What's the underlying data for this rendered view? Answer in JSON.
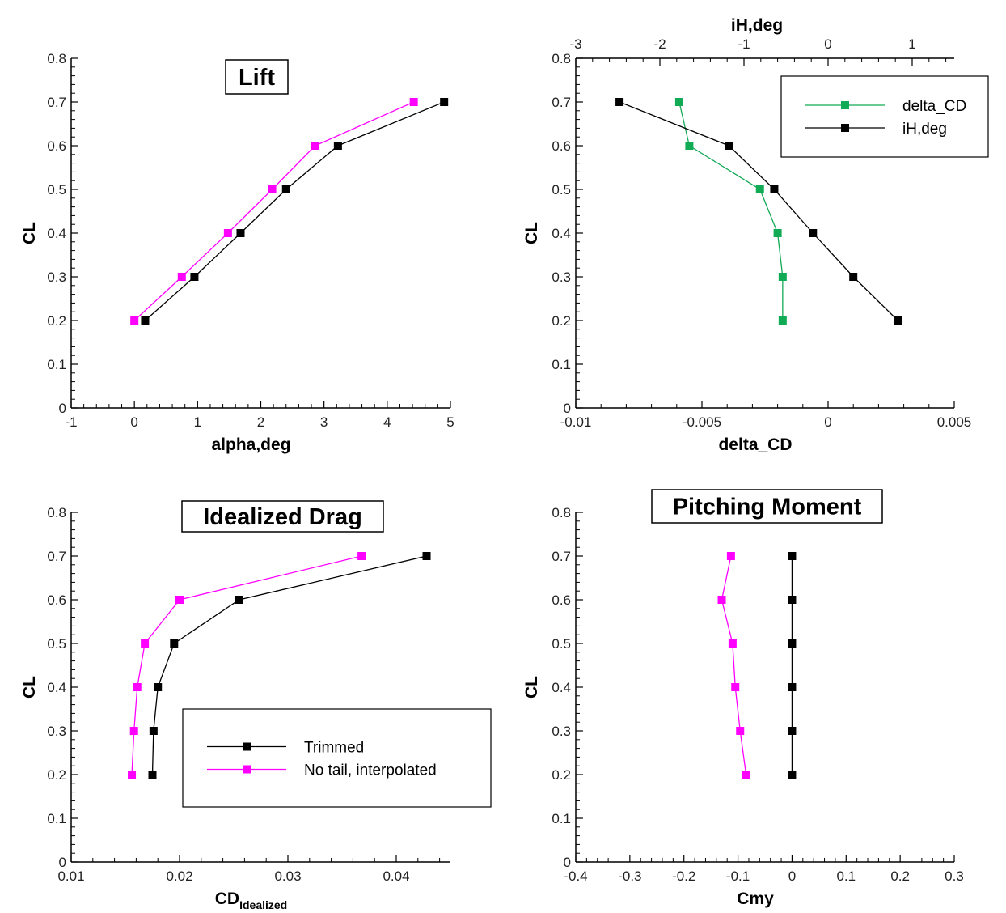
{
  "chart_data": [
    {
      "type": "line",
      "title": "Lift",
      "xlabel": "alpha,deg",
      "ylabel": "CL",
      "xlim": [
        -1,
        5
      ],
      "ylim": [
        0,
        0.8
      ],
      "xticks": [
        "-1",
        "0",
        "1",
        "2",
        "3",
        "4",
        "5"
      ],
      "yticks": [
        "0",
        "0.1",
        "0.2",
        "0.3",
        "0.4",
        "0.5",
        "0.6",
        "0.7",
        "0.8"
      ],
      "grid": false,
      "legend": [],
      "series": [
        {
          "color": "#000000",
          "x": [
            0.17,
            0.95,
            1.68,
            2.4,
            3.22,
            4.9
          ],
          "y": [
            0.2,
            0.3,
            0.4,
            0.5,
            0.6,
            0.7
          ]
        },
        {
          "color": "#ff00ff",
          "x": [
            0.0,
            0.75,
            1.48,
            2.18,
            2.86,
            4.42
          ],
          "y": [
            0.2,
            0.3,
            0.4,
            0.5,
            0.6,
            0.7
          ]
        }
      ]
    },
    {
      "type": "line",
      "title": "",
      "xlabel": "delta_CD",
      "ylabel": "CL",
      "x2label": "iH,deg",
      "xlim": [
        -0.01,
        0.005
      ],
      "x2lim": [
        -3,
        1.5
      ],
      "ylim": [
        0,
        0.8
      ],
      "xticks": [
        "-0.01",
        "-0.005",
        "0",
        "0.005"
      ],
      "x2ticks": [
        "-3",
        "-2",
        "-1",
        "0",
        "1"
      ],
      "yticks": [
        "0",
        "0.1",
        "0.2",
        "0.3",
        "0.4",
        "0.5",
        "0.6",
        "0.7",
        "0.8"
      ],
      "grid": false,
      "legend": [
        {
          "label": "delta_CD",
          "color": "#11aa55"
        },
        {
          "label": "iH,deg",
          "color": "#000000"
        }
      ],
      "legend_position": "top-right",
      "series": [
        {
          "name": "delta_CD",
          "color": "#11aa55",
          "axis": "bottom",
          "x": [
            -0.0059,
            -0.0055,
            -0.0027,
            -0.002,
            -0.0018,
            -0.0018
          ],
          "y": [
            0.7,
            0.6,
            0.5,
            0.4,
            0.3,
            0.2
          ]
        },
        {
          "name": "iH,deg",
          "color": "#000000",
          "axis": "top",
          "x": [
            -2.48,
            -1.18,
            -0.64,
            -0.18,
            0.3,
            0.83
          ],
          "y": [
            0.7,
            0.6,
            0.5,
            0.4,
            0.3,
            0.2
          ]
        }
      ]
    },
    {
      "type": "line",
      "title": "Idealized Drag",
      "xlabel": "CD",
      "xlabel_sub": "Idealized",
      "ylabel": "CL",
      "xlim": [
        0.01,
        0.045
      ],
      "ylim": [
        0,
        0.8
      ],
      "xticks": [
        "0.01",
        "0.02",
        "0.03",
        "0.04"
      ],
      "yticks": [
        "0",
        "0.1",
        "0.2",
        "0.3",
        "0.4",
        "0.5",
        "0.6",
        "0.7",
        "0.8"
      ],
      "grid": false,
      "legend": [
        {
          "label": "Trimmed",
          "color": "#000000"
        },
        {
          "label": "No tail, interpolated",
          "color": "#ff00ff"
        }
      ],
      "legend_position": "bottom-right",
      "series": [
        {
          "name": "Trimmed",
          "color": "#000000",
          "x": [
            0.0175,
            0.0176,
            0.018,
            0.0195,
            0.0255,
            0.0428
          ],
          "y": [
            0.2,
            0.3,
            0.4,
            0.5,
            0.6,
            0.7
          ]
        },
        {
          "name": "No tail, interpolated",
          "color": "#ff00ff",
          "x": [
            0.0156,
            0.0158,
            0.0161,
            0.0168,
            0.02,
            0.0368
          ],
          "y": [
            0.2,
            0.3,
            0.4,
            0.5,
            0.6,
            0.7
          ]
        }
      ]
    },
    {
      "type": "line",
      "title": "Pitching Moment",
      "xlabel": "Cmy",
      "ylabel": "CL",
      "xlim": [
        -0.4,
        0.3
      ],
      "ylim": [
        0,
        0.8
      ],
      "xticks": [
        "-0.4",
        "-0.3",
        "-0.2",
        "-0.1",
        "0",
        "0.1",
        "0.2",
        "0.3"
      ],
      "yticks": [
        "0",
        "0.1",
        "0.2",
        "0.3",
        "0.4",
        "0.5",
        "0.6",
        "0.7",
        "0.8"
      ],
      "grid": false,
      "legend": [],
      "series": [
        {
          "color": "#000000",
          "x": [
            0.0,
            0.0,
            0.0,
            0.0,
            0.0,
            0.0
          ],
          "y": [
            0.2,
            0.3,
            0.4,
            0.5,
            0.6,
            0.7
          ]
        },
        {
          "color": "#ff00ff",
          "x": [
            -0.085,
            -0.096,
            -0.105,
            -0.11,
            -0.13,
            -0.113
          ],
          "y": [
            0.2,
            0.3,
            0.4,
            0.5,
            0.6,
            0.7
          ]
        }
      ]
    }
  ]
}
